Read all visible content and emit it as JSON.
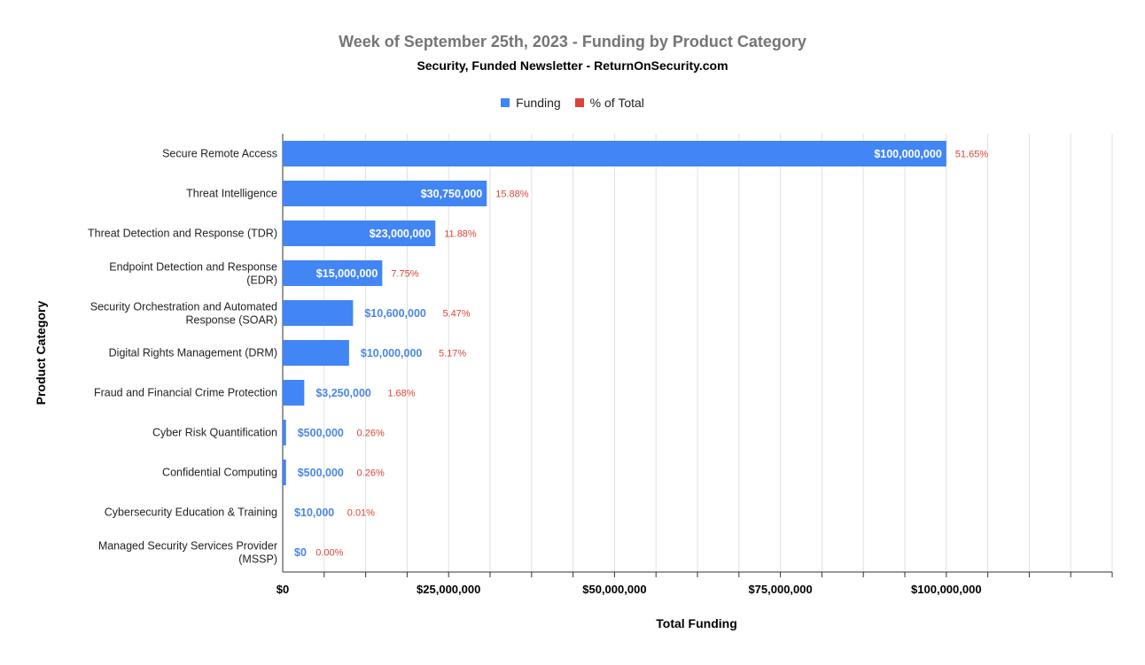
{
  "chart_data": {
    "type": "bar",
    "orientation": "horizontal",
    "title": "Week of September 25th, 2023 - Funding by Product Category",
    "subtitle": "Security, Funded Newsletter - ReturnOnSecurity.com",
    "xlabel": "Total Funding",
    "ylabel": "Product Category",
    "xlim": [
      0,
      125000000
    ],
    "x_ticks": [
      0,
      25000000,
      50000000,
      75000000,
      100000000
    ],
    "x_tick_labels": [
      "$0",
      "$25,000,000",
      "$50,000,000",
      "$75,000,000",
      "$100,000,000"
    ],
    "legend_position": "top",
    "grid": true,
    "categories": [
      [
        "Secure Remote Access"
      ],
      [
        "Threat Intelligence"
      ],
      [
        "Threat Detection and Response (TDR)"
      ],
      [
        "Endpoint Detection and Response",
        "(EDR)"
      ],
      [
        "Security Orchestration and Automated",
        "Response (SOAR)"
      ],
      [
        "Digital Rights Management (DRM)"
      ],
      [
        "Fraud and Financial Crime Protection"
      ],
      [
        "Cyber Risk Quantification"
      ],
      [
        "Confidential Computing"
      ],
      [
        "Cybersecurity Education & Training"
      ],
      [
        "Managed Security Services Provider",
        "(MSSP)"
      ]
    ],
    "series": [
      {
        "name": "Funding",
        "color": "#4285f4",
        "values": [
          100000000,
          30750000,
          23000000,
          15000000,
          10600000,
          10000000,
          3250000,
          500000,
          500000,
          10000,
          0
        ],
        "labels": [
          "$100,000,000",
          "$30,750,000",
          "$23,000,000",
          "$15,000,000",
          "$10,600,000",
          "$10,000,000",
          "$3,250,000",
          "$500,000",
          "$500,000",
          "$10,000",
          "$0"
        ]
      },
      {
        "name": "% of Total",
        "color": "#db4437",
        "values": [
          51.65,
          15.88,
          11.88,
          7.75,
          5.47,
          5.17,
          1.68,
          0.26,
          0.26,
          0.01,
          0.0
        ],
        "labels": [
          "51.65%",
          "15.88%",
          "11.88%",
          "7.75%",
          "5.47%",
          "5.17%",
          "1.68%",
          "0.26%",
          "0.26%",
          "0.01%",
          "0.00%"
        ]
      }
    ]
  }
}
